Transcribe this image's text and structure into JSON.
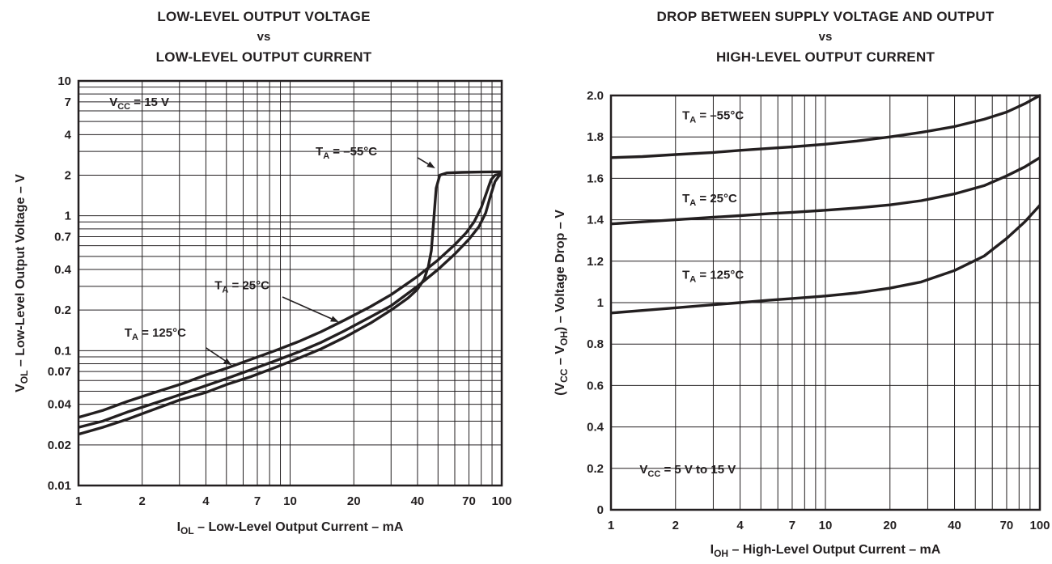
{
  "page": {
    "bg": "#ffffff",
    "ink": "#231f20"
  },
  "chart_data": [
    {
      "type": "line",
      "title_lines": [
        "LOW-LEVEL OUTPUT VOLTAGE",
        "vs",
        "LOW-LEVEL OUTPUT CURRENT"
      ],
      "xlabel": "I_{OL} – Low-Level Output Current – mA",
      "ylabel": "V_{OL} – Low-Level Output Voltage – V",
      "xscale": "log",
      "yscale": "log",
      "xlim": [
        1,
        100
      ],
      "ylim": [
        0.01,
        10
      ],
      "grid": {
        "x": "log-minor",
        "y": "log-minor"
      },
      "legend_position": "none",
      "xticks": {
        "values": [
          1,
          2,
          4,
          7,
          10,
          20,
          40,
          70,
          100
        ],
        "labels": [
          "1",
          "2",
          "4",
          "7",
          "10",
          "20",
          "40",
          "70",
          "100"
        ]
      },
      "yticks": {
        "values": [
          10,
          7,
          4,
          2,
          1,
          0.7,
          0.4,
          0.2,
          0.1,
          0.07,
          0.04,
          0.02,
          0.01
        ],
        "labels": [
          "10",
          "7",
          "4",
          "2",
          "1",
          "0.7",
          "0.4",
          "0.2",
          "0.1",
          "0.07",
          "0.04",
          "0.02",
          "0.01"
        ]
      },
      "series": [
        {
          "name": "TA = –55°C",
          "x": [
            1,
            1.3,
            1.7,
            2.2,
            3,
            4,
            5,
            6.5,
            8.5,
            11,
            14,
            18,
            24,
            30,
            36,
            40,
            43,
            45,
            46.5,
            47.5,
            49,
            51,
            55,
            65,
            80,
            100
          ],
          "y": [
            0.024,
            0.027,
            0.031,
            0.036,
            0.043,
            0.049,
            0.056,
            0.064,
            0.075,
            0.088,
            0.103,
            0.125,
            0.16,
            0.2,
            0.245,
            0.285,
            0.34,
            0.42,
            0.55,
            0.85,
            1.6,
            2.0,
            2.08,
            2.1,
            2.11,
            2.12
          ]
        },
        {
          "name": "TA = 25°C",
          "x": [
            1,
            1.3,
            1.7,
            2.2,
            3,
            4,
            5,
            6.5,
            8.5,
            11,
            14,
            18,
            24,
            30,
            40,
            50,
            60,
            70,
            78,
            84,
            89,
            93,
            97,
            100
          ],
          "y": [
            0.027,
            0.03,
            0.035,
            0.04,
            0.047,
            0.055,
            0.062,
            0.072,
            0.084,
            0.098,
            0.115,
            0.14,
            0.178,
            0.215,
            0.3,
            0.4,
            0.52,
            0.67,
            0.83,
            1.05,
            1.45,
            1.8,
            1.97,
            2.03
          ]
        },
        {
          "name": "TA = 125°C",
          "x": [
            1,
            1.3,
            1.7,
            2.2,
            3,
            4,
            5,
            6.5,
            8.5,
            11,
            14,
            18,
            24,
            30,
            40,
            50,
            60,
            68,
            74,
            80,
            85,
            89,
            93,
            100
          ],
          "y": [
            0.032,
            0.036,
            0.042,
            0.048,
            0.056,
            0.066,
            0.074,
            0.086,
            0.1,
            0.117,
            0.138,
            0.168,
            0.212,
            0.26,
            0.355,
            0.47,
            0.61,
            0.75,
            0.9,
            1.15,
            1.5,
            1.85,
            2.0,
            2.05
          ]
        }
      ],
      "annotations": [
        {
          "text": "V_{CC} = 15 V",
          "x": 1.4,
          "y": 6.5
        },
        {
          "text": "T_{A} = –55°C",
          "x": 13.2,
          "y": 2.8,
          "arrow": [
            40,
            2.7,
            48.5,
            2.25
          ]
        },
        {
          "text": "T_{A} = 25°C",
          "x": 4.4,
          "y": 0.285,
          "arrow": [
            9.2,
            0.25,
            17,
            0.163
          ]
        },
        {
          "text": "T_{A} = 125°C",
          "x": 1.65,
          "y": 0.127,
          "arrow": [
            4.0,
            0.105,
            5.3,
            0.078
          ]
        }
      ]
    },
    {
      "type": "line",
      "title_lines": [
        "DROP BETWEEN SUPPLY VOLTAGE AND OUTPUT",
        "vs",
        "HIGH-LEVEL OUTPUT CURRENT"
      ],
      "xlabel": "I_{OH} – High-Level Output Current – mA",
      "ylabel": "(V_{CC} – V_{OH}) – Voltage Drop – V",
      "xscale": "log",
      "yscale": "linear",
      "xlim": [
        1,
        100
      ],
      "ylim": [
        0,
        2.0
      ],
      "grid": {
        "x": "log-minor",
        "y": "ticks"
      },
      "legend_position": "none",
      "xticks": {
        "values": [
          1,
          2,
          4,
          7,
          10,
          20,
          40,
          70,
          100
        ],
        "labels": [
          "1",
          "2",
          "4",
          "7",
          "10",
          "20",
          "40",
          "70",
          "100"
        ]
      },
      "yticks": {
        "values": [
          2.0,
          1.8,
          1.6,
          1.4,
          1.2,
          1.0,
          0.8,
          0.6,
          0.4,
          0.2,
          0
        ],
        "labels": [
          "2.0",
          "1.8",
          "1.6",
          "1.4",
          "1.2",
          "1",
          "0.8",
          "0.6",
          "0.4",
          "0.2",
          "0"
        ]
      },
      "series": [
        {
          "name": "TA = –55°C",
          "x": [
            1,
            1.4,
            2,
            3,
            4,
            5.5,
            7,
            10,
            14,
            20,
            28,
            40,
            55,
            70,
            85,
            100
          ],
          "y": [
            1.7,
            1.705,
            1.715,
            1.725,
            1.735,
            1.745,
            1.752,
            1.765,
            1.78,
            1.8,
            1.822,
            1.85,
            1.885,
            1.92,
            1.96,
            2.0
          ]
        },
        {
          "name": "TA = 25°C",
          "x": [
            1,
            1.4,
            2,
            3,
            4,
            5.5,
            7,
            10,
            14,
            20,
            28,
            40,
            55,
            70,
            85,
            100
          ],
          "y": [
            1.38,
            1.39,
            1.4,
            1.412,
            1.42,
            1.43,
            1.436,
            1.446,
            1.457,
            1.472,
            1.492,
            1.525,
            1.565,
            1.612,
            1.655,
            1.7
          ]
        },
        {
          "name": "TA = 125°C",
          "x": [
            1,
            1.4,
            2,
            3,
            4,
            5.5,
            7,
            10,
            14,
            20,
            28,
            40,
            55,
            70,
            85,
            100
          ],
          "y": [
            0.95,
            0.962,
            0.975,
            0.99,
            1.0,
            1.012,
            1.02,
            1.032,
            1.047,
            1.07,
            1.1,
            1.155,
            1.225,
            1.31,
            1.39,
            1.47
          ]
        }
      ],
      "annotations": [
        {
          "text": "T_{A} = –55°C",
          "x": 2.15,
          "y": 1.885
        },
        {
          "text": "T_{A} = 25°C",
          "x": 2.15,
          "y": 1.485
        },
        {
          "text": "T_{A} = 125°C",
          "x": 2.15,
          "y": 1.115
        },
        {
          "text": "V_{CC} = 5 V to 15 V",
          "x": 1.36,
          "y": 0.175
        }
      ]
    }
  ]
}
